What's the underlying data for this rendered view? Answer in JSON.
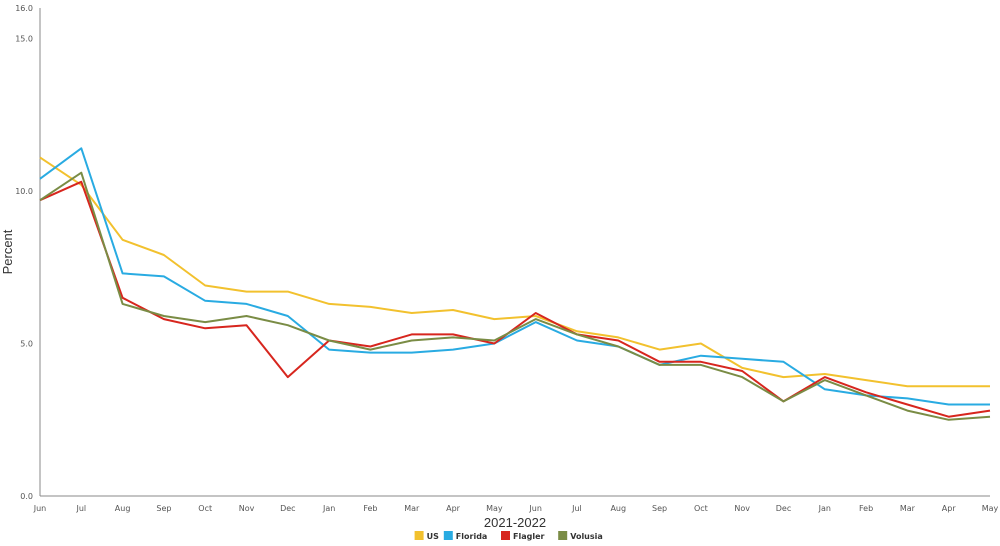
{
  "chart_data": {
    "type": "line",
    "xlabel": "2021-2022",
    "ylabel": "Percent",
    "categories": [
      "Jun",
      "Jul",
      "Aug",
      "Sep",
      "Oct",
      "Nov",
      "Dec",
      "Jan",
      "Feb",
      "Mar",
      "Apr",
      "May",
      "Jun",
      "Jul",
      "Aug",
      "Sep",
      "Oct",
      "Nov",
      "Dec",
      "Jan",
      "Feb",
      "Mar",
      "Apr",
      "May"
    ],
    "ylim": [
      0,
      16
    ],
    "yticks": [
      0,
      5,
      10,
      15,
      16
    ],
    "ytick_labels": [
      "0.0",
      "5.0",
      "10.0",
      "15.0",
      "16.0"
    ],
    "grid": false,
    "legend_position": "bottom",
    "series": [
      {
        "name": "US",
        "color": "#f2c12e",
        "values": [
          11.1,
          10.2,
          8.4,
          7.9,
          6.9,
          6.7,
          6.7,
          6.3,
          6.2,
          6.0,
          6.1,
          5.8,
          5.9,
          5.4,
          5.2,
          4.8,
          5.0,
          4.2,
          3.9,
          4.0,
          3.8,
          3.6,
          3.6,
          3.6
        ]
      },
      {
        "name": "Florida",
        "color": "#29abe2",
        "values": [
          10.4,
          11.4,
          7.3,
          7.2,
          6.4,
          6.3,
          5.9,
          4.8,
          4.7,
          4.7,
          4.8,
          5.0,
          5.7,
          5.1,
          4.9,
          4.3,
          4.6,
          4.5,
          4.4,
          3.5,
          3.3,
          3.2,
          3.0,
          3.0
        ]
      },
      {
        "name": "Flagler",
        "color": "#d7261e",
        "values": [
          9.7,
          10.3,
          6.5,
          5.8,
          5.5,
          5.6,
          3.9,
          5.1,
          4.9,
          5.3,
          5.3,
          5.0,
          6.0,
          5.3,
          5.1,
          4.4,
          4.4,
          4.1,
          3.1,
          3.9,
          3.4,
          3.0,
          2.6,
          2.8
        ]
      },
      {
        "name": "Volusia",
        "color": "#7a8c45",
        "values": [
          9.7,
          10.6,
          6.3,
          5.9,
          5.7,
          5.9,
          5.6,
          5.1,
          4.8,
          5.1,
          5.2,
          5.1,
          5.8,
          5.3,
          4.9,
          4.3,
          4.3,
          3.9,
          3.1,
          3.8,
          3.3,
          2.8,
          2.5,
          2.6
        ]
      }
    ]
  }
}
